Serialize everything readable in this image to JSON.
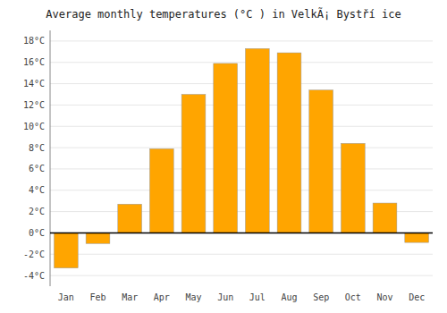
{
  "chart_data": {
    "type": "bar",
    "title": "Average monthly temperatures (°C ) in VelkÃ¡ Bystří ice",
    "categories": [
      "Jan",
      "Feb",
      "Mar",
      "Apr",
      "May",
      "Jun",
      "Jul",
      "Aug",
      "Sep",
      "Oct",
      "Nov",
      "Dec"
    ],
    "values": [
      -3.3,
      -1.0,
      2.7,
      7.9,
      13.0,
      15.9,
      17.3,
      16.9,
      13.4,
      8.4,
      2.8,
      -0.9
    ],
    "color": "#FFA500",
    "ylim": [
      -5,
      19
    ],
    "yticks": [
      {
        "value": -4,
        "label": "-4°C"
      },
      {
        "value": -2,
        "label": "-2°C"
      },
      {
        "value": 0,
        "label": "0°C"
      },
      {
        "value": 2,
        "label": "2°C"
      },
      {
        "value": 4,
        "label": "4°C"
      },
      {
        "value": 6,
        "label": "6°C"
      },
      {
        "value": 8,
        "label": "8°C"
      },
      {
        "value": 10,
        "label": "10°C"
      },
      {
        "value": 12,
        "label": "12°C"
      },
      {
        "value": 14,
        "label": "14°C"
      },
      {
        "value": 16,
        "label": "16°C"
      },
      {
        "value": 18,
        "label": "18°C"
      }
    ],
    "grid": true
  }
}
